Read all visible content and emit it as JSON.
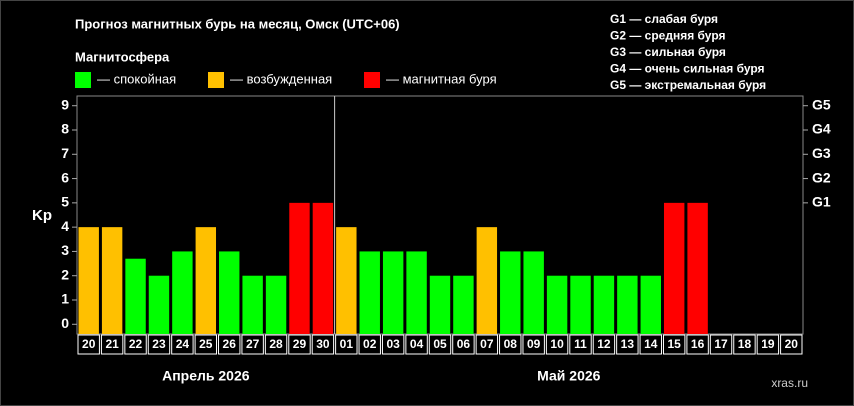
{
  "chart_data": {
    "type": "bar",
    "title": "Прогноз магнитных бурь на месяц, Омск (UTC+06)",
    "legend_title": "Магнитосфера",
    "legend": [
      {
        "label": "— спокойная",
        "color": "#00ff00"
      },
      {
        "label": "— возбужденная",
        "color": "#ffc000"
      },
      {
        "label": "— магнитная буря",
        "color": "#ff0000"
      }
    ],
    "scale_notes": [
      "G1 — слабая буря",
      "G2 — средняя буря",
      "G3 — сильная буря",
      "G4 — очень сильная буря",
      "G5 — экстремальная буря"
    ],
    "y_label": "Kp",
    "categories": [
      "20",
      "21",
      "22",
      "23",
      "24",
      "25",
      "26",
      "27",
      "28",
      "29",
      "30",
      "01",
      "02",
      "03",
      "04",
      "05",
      "06",
      "07",
      "08",
      "09",
      "10",
      "11",
      "12",
      "13",
      "14",
      "15",
      "16",
      "17",
      "18",
      "19",
      "20"
    ],
    "values": [
      4,
      4,
      2.7,
      2,
      3,
      4,
      3,
      2,
      2,
      5,
      5,
      4,
      3,
      3,
      3,
      2,
      2,
      4,
      3,
      3,
      2,
      2,
      2,
      2,
      2,
      5,
      5,
      null,
      null,
      null,
      null
    ],
    "colors": [
      "#ffc000",
      "#ffc000",
      "#00ff00",
      "#00ff00",
      "#00ff00",
      "#ffc000",
      "#00ff00",
      "#00ff00",
      "#00ff00",
      "#ff0000",
      "#ff0000",
      "#ffc000",
      "#00ff00",
      "#00ff00",
      "#00ff00",
      "#00ff00",
      "#00ff00",
      "#ffc000",
      "#00ff00",
      "#00ff00",
      "#00ff00",
      "#00ff00",
      "#00ff00",
      "#00ff00",
      "#00ff00",
      "#ff0000",
      "#ff0000",
      null,
      null,
      null,
      null
    ],
    "months": [
      "Апрель 2026",
      "Май 2026"
    ],
    "ylim": [
      -0.4,
      9.4
    ],
    "yticks": [
      0,
      1,
      2,
      3,
      4,
      5,
      6,
      7,
      8,
      9
    ],
    "y2lim": [
      -0.4,
      9.4
    ],
    "y2ticks": [
      {
        "value": 5,
        "label": "G1"
      },
      {
        "value": 6,
        "label": "G2"
      },
      {
        "value": 7,
        "label": "G3"
      },
      {
        "value": 8,
        "label": "G4"
      },
      {
        "value": 9,
        "label": "G5"
      }
    ],
    "watermark": "xras.ru"
  }
}
